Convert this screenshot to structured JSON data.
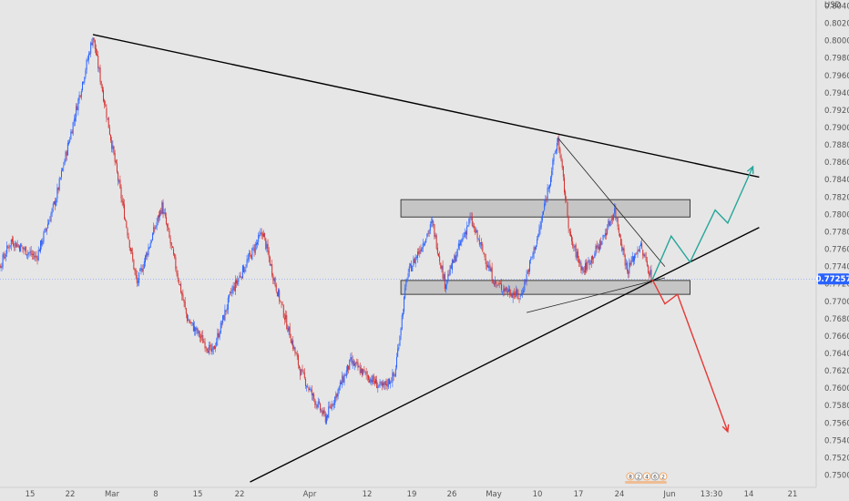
{
  "chart_data": {
    "type": "candlestick",
    "currency": "USD",
    "y_axis": {
      "min": 0.748,
      "max": 0.806,
      "ticks": [
        "0.80400",
        "0.80200",
        "0.80000",
        "0.79800",
        "0.79600",
        "0.79400",
        "0.79200",
        "0.79000",
        "0.78800",
        "0.78600",
        "0.78400",
        "0.78200",
        "0.78000",
        "0.77800",
        "0.77600",
        "0.77400",
        "0.77200",
        "0.77000",
        "0.76800",
        "0.76600",
        "0.76400",
        "0.76200",
        "0.76000",
        "0.75800",
        "0.75600",
        "0.75400",
        "0.75200",
        "0.75000"
      ]
    },
    "x_axis": {
      "labels": [
        "15",
        "22",
        "Mar",
        "8",
        "15",
        "22",
        "Apr",
        "12",
        "19",
        "26",
        "May",
        "10",
        "17",
        "24",
        "Jun",
        "14",
        "21"
      ],
      "time_label": "13:30"
    },
    "last_price": "0.77257",
    "colors": {
      "background": "#e6e6e6",
      "bull": "#2962ff",
      "bear": "#d32f2f",
      "trendline": "#000000",
      "zone_fill": "#c4c4c4",
      "bullish_projection": "#26a69a",
      "bearish_projection": "#e53935",
      "price_line": "#2962ff"
    },
    "annotations": {
      "upper_trendline": {
        "from": {
          "date": "2021-02-25",
          "price": 0.8007
        },
        "to": {
          "date": "2021-06-11",
          "price": 0.7843
        }
      },
      "lower_trendline": {
        "from": {
          "date": "2021-03-22",
          "price": 0.7492
        },
        "to": {
          "date": "2021-06-11",
          "price": 0.7785
        }
      },
      "resistance_zone": {
        "from_date": "2021-04-15",
        "to_date": "2021-05-31",
        "low": 0.7797,
        "high": 0.7817
      },
      "support_zone": {
        "from_date": "2021-04-15",
        "to_date": "2021-05-31",
        "low": 0.7708,
        "high": 0.7724
      },
      "bullish_projection": [
        {
          "date": "2021-05-25",
          "price": 0.7725
        },
        {
          "date": "2021-05-28",
          "price": 0.7775
        },
        {
          "date": "2021-05-31",
          "price": 0.7745
        },
        {
          "date": "2021-06-04",
          "price": 0.7805
        },
        {
          "date": "2021-06-06",
          "price": 0.779
        },
        {
          "date": "2021-06-10",
          "price": 0.7855
        }
      ],
      "bearish_projection": [
        {
          "date": "2021-05-25",
          "price": 0.7725
        },
        {
          "date": "2021-05-27",
          "price": 0.7697
        },
        {
          "date": "2021-05-29",
          "price": 0.7708
        },
        {
          "date": "2021-06-06",
          "price": 0.755
        }
      ]
    },
    "price_path": [
      {
        "date": "2021-02-08",
        "price": 0.7705
      },
      {
        "date": "2021-02-12",
        "price": 0.777
      },
      {
        "date": "2021-02-16",
        "price": 0.775
      },
      {
        "date": "2021-02-19",
        "price": 0.7815
      },
      {
        "date": "2021-02-25",
        "price": 0.8005
      },
      {
        "date": "2021-03-01",
        "price": 0.784
      },
      {
        "date": "2021-03-04",
        "price": 0.772
      },
      {
        "date": "2021-03-08",
        "price": 0.781
      },
      {
        "date": "2021-03-12",
        "price": 0.768
      },
      {
        "date": "2021-03-16",
        "price": 0.764
      },
      {
        "date": "2021-03-19",
        "price": 0.771
      },
      {
        "date": "2021-03-24",
        "price": 0.778
      },
      {
        "date": "2021-03-26",
        "price": 0.772
      },
      {
        "date": "2021-03-30",
        "price": 0.762
      },
      {
        "date": "2021-04-01",
        "price": 0.759
      },
      {
        "date": "2021-04-03",
        "price": 0.7565
      },
      {
        "date": "2021-04-07",
        "price": 0.763
      },
      {
        "date": "2021-04-12",
        "price": 0.76
      },
      {
        "date": "2021-04-14",
        "price": 0.7615
      },
      {
        "date": "2021-04-16",
        "price": 0.773
      },
      {
        "date": "2021-04-20",
        "price": 0.779
      },
      {
        "date": "2021-04-22",
        "price": 0.772
      },
      {
        "date": "2021-04-26",
        "price": 0.7795
      },
      {
        "date": "2021-04-30",
        "price": 0.772
      },
      {
        "date": "2021-05-04",
        "price": 0.7705
      },
      {
        "date": "2021-05-07",
        "price": 0.778
      },
      {
        "date": "2021-05-10",
        "price": 0.7888
      },
      {
        "date": "2021-05-12",
        "price": 0.777
      },
      {
        "date": "2021-05-14",
        "price": 0.7735
      },
      {
        "date": "2021-05-17",
        "price": 0.777
      },
      {
        "date": "2021-05-19",
        "price": 0.7805
      },
      {
        "date": "2021-05-21",
        "price": 0.7735
      },
      {
        "date": "2021-05-23",
        "price": 0.7765
      },
      {
        "date": "2021-05-25",
        "price": 0.7725
      }
    ]
  },
  "footer_badges": [
    "8",
    "2",
    "4",
    "6",
    "2"
  ]
}
